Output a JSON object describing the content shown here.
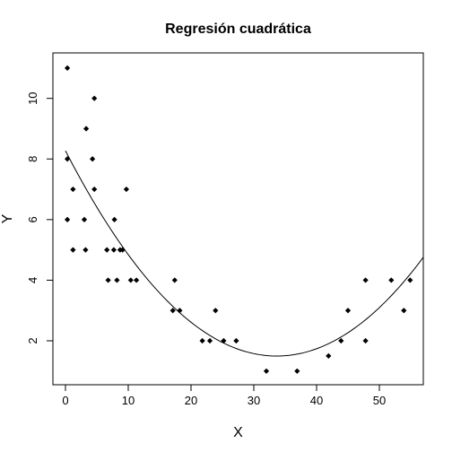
{
  "chart_data": {
    "type": "scatter",
    "title": "Regresión cuadrática",
    "xlabel": "X",
    "ylabel": "Y",
    "xlim": [
      -2,
      57
    ],
    "ylim": [
      0.55,
      11.5
    ],
    "xticks": [
      0,
      10,
      20,
      30,
      40,
      50
    ],
    "yticks": [
      2,
      4,
      6,
      8,
      10
    ],
    "xtick_labels": [
      "0",
      "10",
      "20",
      "30",
      "40",
      "50"
    ],
    "ytick_labels": [
      "2",
      "4",
      "6",
      "8",
      "10"
    ],
    "points": [
      {
        "x": 0.3,
        "y": 11
      },
      {
        "x": 0.3,
        "y": 8
      },
      {
        "x": 0.3,
        "y": 6
      },
      {
        "x": 1.2,
        "y": 7
      },
      {
        "x": 1.2,
        "y": 5
      },
      {
        "x": 3,
        "y": 6
      },
      {
        "x": 3.2,
        "y": 5
      },
      {
        "x": 3.3,
        "y": 9
      },
      {
        "x": 4.3,
        "y": 8
      },
      {
        "x": 4.6,
        "y": 10
      },
      {
        "x": 4.6,
        "y": 7
      },
      {
        "x": 6.6,
        "y": 5
      },
      {
        "x": 6.8,
        "y": 4
      },
      {
        "x": 7.7,
        "y": 5
      },
      {
        "x": 7.8,
        "y": 6
      },
      {
        "x": 8.2,
        "y": 4
      },
      {
        "x": 8.7,
        "y": 5
      },
      {
        "x": 9.1,
        "y": 5
      },
      {
        "x": 9.7,
        "y": 7
      },
      {
        "x": 10.4,
        "y": 4
      },
      {
        "x": 11.3,
        "y": 4
      },
      {
        "x": 17.1,
        "y": 3
      },
      {
        "x": 17.4,
        "y": 4
      },
      {
        "x": 18.2,
        "y": 3
      },
      {
        "x": 21.8,
        "y": 2
      },
      {
        "x": 23,
        "y": 2
      },
      {
        "x": 23.9,
        "y": 3
      },
      {
        "x": 25.2,
        "y": 2
      },
      {
        "x": 27.2,
        "y": 2
      },
      {
        "x": 32,
        "y": 1
      },
      {
        "x": 36.9,
        "y": 1
      },
      {
        "x": 41.9,
        "y": 1.5
      },
      {
        "x": 43.9,
        "y": 2
      },
      {
        "x": 45,
        "y": 3
      },
      {
        "x": 47.8,
        "y": 4
      },
      {
        "x": 47.8,
        "y": 2
      },
      {
        "x": 51.9,
        "y": 4
      },
      {
        "x": 53.9,
        "y": 3
      },
      {
        "x": 54.9,
        "y": 4
      }
    ],
    "fit": {
      "type": "quadratic",
      "coefficients": {
        "a": 0.00598,
        "b": -0.4025,
        "c": 8.27
      },
      "x_range": [
        0,
        57
      ]
    }
  }
}
